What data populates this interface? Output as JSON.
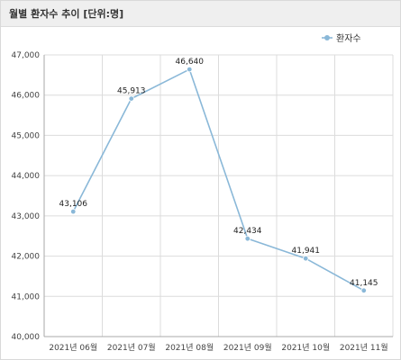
{
  "panel": {
    "title": "월별 환자수 추이 [단위:명]"
  },
  "chart_data": {
    "type": "line",
    "title": "월별 환자수 추이 [단위:명]",
    "categories": [
      "2021년 06월",
      "2021년 07월",
      "2021년 08월",
      "2021년 09월",
      "2021년 10월",
      "2021년 11월"
    ],
    "series": [
      {
        "name": "환자수",
        "values": [
          43106,
          45913,
          46640,
          42434,
          41941,
          41145
        ],
        "labels": [
          "43,106",
          "45,913",
          "46,640",
          "42,434",
          "41,941",
          "41,145"
        ]
      }
    ],
    "yticks": [
      "40,000",
      "41,000",
      "42,000",
      "43,000",
      "44,000",
      "45,000",
      "46,000",
      "47,000"
    ],
    "ylim": [
      40000,
      47000
    ],
    "xlabel": "",
    "ylabel": "",
    "grid": true,
    "legend_position": "top-right",
    "colors": {
      "series": "#8ab8d8",
      "grid": "#dcdcdc",
      "axis": "#aaaaaa"
    }
  }
}
